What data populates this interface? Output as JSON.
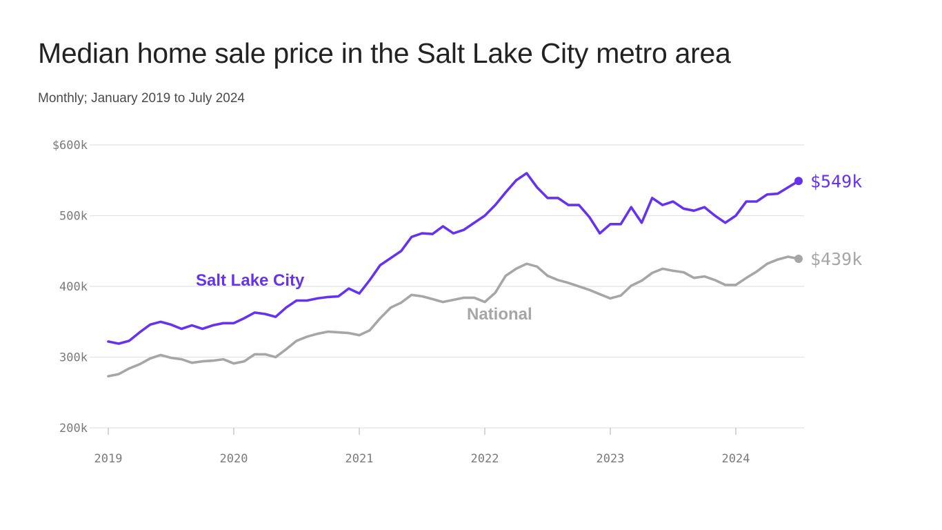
{
  "title": "Median home sale price in the Salt Lake City metro area",
  "subtitle": "Monthly; January 2019 to July 2024",
  "colors": {
    "slc": "#6533ee",
    "national": "#a6a6a6",
    "grid": "#e2e2e2",
    "text": "#222222"
  },
  "chart_data": {
    "type": "line",
    "title": "Median home sale price in the Salt Lake City metro area",
    "subtitle": "Monthly; January 2019 to July 2024",
    "xlabel": "",
    "ylabel": "",
    "x_ticks": [
      "2019",
      "2020",
      "2021",
      "2022",
      "2023",
      "2024"
    ],
    "y_ticks": [
      "200k",
      "300k",
      "400k",
      "500k",
      "$600k"
    ],
    "ylim": [
      200000,
      600000
    ],
    "grid": "horizontal",
    "series": [
      {
        "name": "Salt Lake City",
        "end_label": "$549k",
        "x": [
          "2019-01",
          "2019-02",
          "2019-03",
          "2019-04",
          "2019-05",
          "2019-06",
          "2019-07",
          "2019-08",
          "2019-09",
          "2019-10",
          "2019-11",
          "2019-12",
          "2020-01",
          "2020-02",
          "2020-03",
          "2020-04",
          "2020-05",
          "2020-06",
          "2020-07",
          "2020-08",
          "2020-09",
          "2020-10",
          "2020-11",
          "2020-12",
          "2021-01",
          "2021-02",
          "2021-03",
          "2021-04",
          "2021-05",
          "2021-06",
          "2021-07",
          "2021-08",
          "2021-09",
          "2021-10",
          "2021-11",
          "2021-12",
          "2022-01",
          "2022-02",
          "2022-03",
          "2022-04",
          "2022-05",
          "2022-06",
          "2022-07",
          "2022-08",
          "2022-09",
          "2022-10",
          "2022-11",
          "2022-12",
          "2023-01",
          "2023-02",
          "2023-03",
          "2023-04",
          "2023-05",
          "2023-06",
          "2023-07",
          "2023-08",
          "2023-09",
          "2023-10",
          "2023-11",
          "2023-12",
          "2024-01",
          "2024-02",
          "2024-03",
          "2024-04",
          "2024-05",
          "2024-06",
          "2024-07"
        ],
        "values": [
          322000,
          319000,
          323000,
          335000,
          346000,
          350000,
          346000,
          340000,
          345000,
          340000,
          345000,
          348000,
          348000,
          355000,
          363000,
          361000,
          357000,
          370000,
          380000,
          380000,
          383000,
          385000,
          386000,
          397000,
          390000,
          409000,
          430000,
          440000,
          450000,
          470000,
          475000,
          474000,
          485000,
          475000,
          480000,
          490000,
          500000,
          515000,
          533000,
          550000,
          560000,
          540000,
          525000,
          525000,
          515000,
          515000,
          498000,
          475000,
          488000,
          488000,
          512000,
          490000,
          525000,
          515000,
          520000,
          510000,
          507000,
          512000,
          500000,
          490000,
          500000,
          520000,
          520000,
          530000,
          531000,
          540000,
          549000
        ]
      },
      {
        "name": "National",
        "end_label": "$439k",
        "x": [
          "2019-01",
          "2019-02",
          "2019-03",
          "2019-04",
          "2019-05",
          "2019-06",
          "2019-07",
          "2019-08",
          "2019-09",
          "2019-10",
          "2019-11",
          "2019-12",
          "2020-01",
          "2020-02",
          "2020-03",
          "2020-04",
          "2020-05",
          "2020-06",
          "2020-07",
          "2020-08",
          "2020-09",
          "2020-10",
          "2020-11",
          "2020-12",
          "2021-01",
          "2021-02",
          "2021-03",
          "2021-04",
          "2021-05",
          "2021-06",
          "2021-07",
          "2021-08",
          "2021-09",
          "2021-10",
          "2021-11",
          "2021-12",
          "2022-01",
          "2022-02",
          "2022-03",
          "2022-04",
          "2022-05",
          "2022-06",
          "2022-07",
          "2022-08",
          "2022-09",
          "2022-10",
          "2022-11",
          "2022-12",
          "2023-01",
          "2023-02",
          "2023-03",
          "2023-04",
          "2023-05",
          "2023-06",
          "2023-07",
          "2023-08",
          "2023-09",
          "2023-10",
          "2023-11",
          "2023-12",
          "2024-01",
          "2024-02",
          "2024-03",
          "2024-04",
          "2024-05",
          "2024-06",
          "2024-07"
        ],
        "values": [
          273000,
          276000,
          284000,
          290000,
          298000,
          303000,
          299000,
          297000,
          292000,
          294000,
          295000,
          297000,
          291000,
          294000,
          304000,
          304000,
          300000,
          311000,
          323000,
          329000,
          333000,
          336000,
          335000,
          334000,
          331000,
          338000,
          355000,
          370000,
          377000,
          388000,
          386000,
          382000,
          378000,
          381000,
          384000,
          384000,
          378000,
          391000,
          415000,
          425000,
          432000,
          428000,
          415000,
          409000,
          405000,
          400000,
          395000,
          389000,
          383000,
          387000,
          401000,
          408000,
          419000,
          425000,
          422000,
          420000,
          412000,
          414000,
          409000,
          402000,
          402000,
          412000,
          421000,
          432000,
          438000,
          442000,
          439000
        ]
      }
    ]
  }
}
